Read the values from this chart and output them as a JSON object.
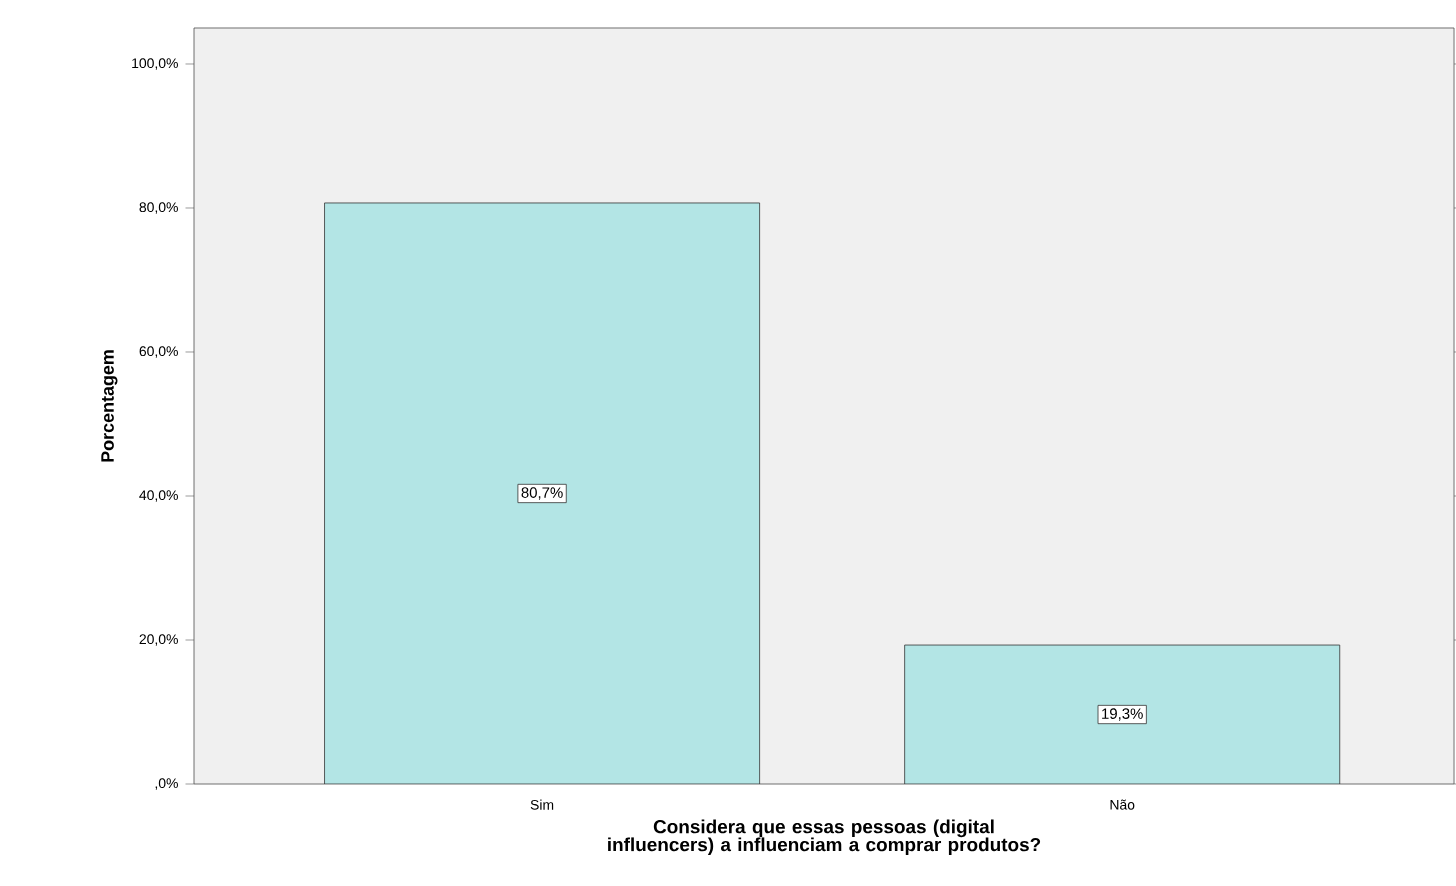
{
  "chart_data": {
    "type": "bar",
    "xlabel": "Considera que essas pessoas (digital influencers) a influenciam a comprar produtos?",
    "ylabel": "Porcentagem",
    "categories": [
      "Sim",
      "Não"
    ],
    "values": [
      80.7,
      19.3
    ],
    "value_labels": [
      "80,7%",
      "19,3%"
    ],
    "color": "#b3e5e5",
    "ylim": [
      0,
      105
    ],
    "yticks": [
      {
        "value": 0,
        "label": ",0%"
      },
      {
        "value": 20,
        "label": "20,0%"
      },
      {
        "value": 40,
        "label": "40,0%"
      },
      {
        "value": 60,
        "label": "60,0%"
      },
      {
        "value": 80,
        "label": "80,0%"
      },
      {
        "value": 100,
        "label": "100,0%"
      }
    ]
  }
}
